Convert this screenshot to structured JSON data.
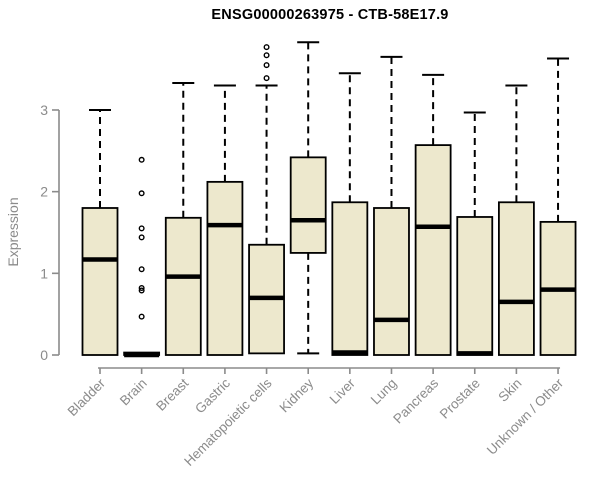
{
  "chart_data": {
    "type": "boxplot",
    "title": "ENSG00000263975 - CTB-58E17.9",
    "ylabel": "Expression",
    "xlabel": "",
    "yticks": [
      0,
      1,
      2,
      3
    ],
    "ylim": [
      0,
      3.95
    ],
    "grid": false,
    "legend": "none",
    "colors": {
      "box_fill": "#EDE8CD",
      "box_stroke": "#000000",
      "median": "#000000",
      "whisker": "#000000",
      "axis": "#8B8B8B",
      "tick_label": "#8B8B8B",
      "title": "#000000"
    },
    "categories": [
      "Bladder",
      "Brain",
      "Breast",
      "Gastric",
      "Hematopoietic cells",
      "Kidney",
      "Liver",
      "Lung",
      "Pancreas",
      "Prostate",
      "Skin",
      "Unknown / Other"
    ],
    "boxes": [
      {
        "category": "Bladder",
        "whisker_low": 0,
        "q1": 0,
        "median": 1.17,
        "q3": 1.8,
        "whisker_high": 3.0,
        "outliers": []
      },
      {
        "category": "Brain",
        "whisker_low": 0,
        "q1": 0,
        "median": 0.0,
        "q3": 0.03,
        "whisker_high": 0.03,
        "outliers": [
          0.47,
          0.79,
          0.82,
          1.05,
          1.44,
          1.55,
          1.98,
          2.39
        ]
      },
      {
        "category": "Breast",
        "whisker_low": 0,
        "q1": 0,
        "median": 0.96,
        "q3": 1.68,
        "whisker_high": 3.33,
        "outliers": []
      },
      {
        "category": "Gastric",
        "whisker_low": 0,
        "q1": 0,
        "median": 1.59,
        "q3": 2.12,
        "whisker_high": 3.3,
        "outliers": []
      },
      {
        "category": "Hematopoietic cells",
        "whisker_low": 0,
        "q1": 0.02,
        "median": 0.7,
        "q3": 1.35,
        "whisker_high": 3.3,
        "outliers": [
          3.39,
          3.55,
          3.67,
          3.77
        ]
      },
      {
        "category": "Kidney",
        "whisker_low": 0.02,
        "q1": 1.25,
        "median": 1.65,
        "q3": 2.42,
        "whisker_high": 3.83,
        "outliers": []
      },
      {
        "category": "Liver",
        "whisker_low": 0,
        "q1": 0,
        "median": 0.03,
        "q3": 1.87,
        "whisker_high": 3.45,
        "outliers": []
      },
      {
        "category": "Lung",
        "whisker_low": 0,
        "q1": 0,
        "median": 0.43,
        "q3": 1.8,
        "whisker_high": 3.65,
        "outliers": []
      },
      {
        "category": "Pancreas",
        "whisker_low": 0,
        "q1": 0,
        "median": 1.57,
        "q3": 2.57,
        "whisker_high": 3.43,
        "outliers": []
      },
      {
        "category": "Prostate",
        "whisker_low": 0,
        "q1": 0,
        "median": 0.02,
        "q3": 1.69,
        "whisker_high": 2.97,
        "outliers": []
      },
      {
        "category": "Skin",
        "whisker_low": 0,
        "q1": 0,
        "median": 0.65,
        "q3": 1.87,
        "whisker_high": 3.3,
        "outliers": []
      },
      {
        "category": "Unknown / Other",
        "whisker_low": 0,
        "q1": 0,
        "median": 0.8,
        "q3": 1.63,
        "whisker_high": 3.63,
        "outliers": []
      }
    ]
  }
}
